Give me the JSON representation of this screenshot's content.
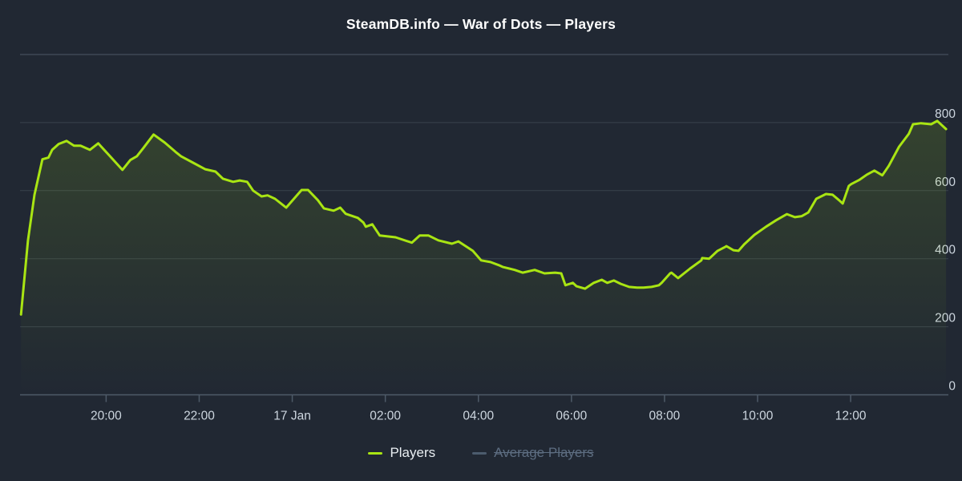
{
  "title": "SteamDB.info — War of Dots — Players",
  "colors": {
    "background": "#212833",
    "players_line": "#a9e513",
    "players_fill_top": "rgba(169,229,19,0.14)",
    "players_fill_bottom": "rgba(169,229,19,0.0)",
    "gridline": "#39424d",
    "plot_top_border": "#3f4854",
    "axis_line": "#4e5a68",
    "axis_label": "#cdd6df",
    "title_text": "#ffffff",
    "legend_enabled_text": "#e9eef2",
    "legend_disabled_text": "#5d6d81",
    "legend_disabled_marker": "#4c5c6e"
  },
  "legend": {
    "items": [
      {
        "label": "Players",
        "color": "#a9e513",
        "enabled": true
      },
      {
        "label": "Average Players",
        "color": "#4c5c6e",
        "enabled": false
      }
    ]
  },
  "chart_data": {
    "type": "area",
    "title": "SteamDB.info — War of Dots — Players",
    "xlabel": "",
    "ylabel": "",
    "x_unit": "hours relative to 17 Jan 00:00",
    "xlim": [
      -5.85,
      14.1
    ],
    "ylim": [
      0,
      1000
    ],
    "grid": true,
    "legend_position": "bottom",
    "x_ticks": [
      {
        "v": -4,
        "label": "20:00"
      },
      {
        "v": -2,
        "label": "22:00"
      },
      {
        "v": 0,
        "label": "17 Jan"
      },
      {
        "v": 2,
        "label": "02:00"
      },
      {
        "v": 4,
        "label": "04:00"
      },
      {
        "v": 6,
        "label": "06:00"
      },
      {
        "v": 8,
        "label": "08:00"
      },
      {
        "v": 10,
        "label": "10:00"
      },
      {
        "v": 12,
        "label": "12:00"
      }
    ],
    "y_ticks": [
      {
        "v": 0,
        "label": "0"
      },
      {
        "v": 200,
        "label": "200"
      },
      {
        "v": 400,
        "label": "400"
      },
      {
        "v": 600,
        "label": "600"
      },
      {
        "v": 800,
        "label": "800"
      }
    ],
    "series": [
      {
        "name": "Players",
        "visible": true,
        "color": "#a9e513",
        "x": [
          -5.83,
          -5.68,
          -5.54,
          -5.37,
          -5.24,
          -5.16,
          -5.02,
          -4.85,
          -4.69,
          -4.55,
          -4.35,
          -4.17,
          -3.95,
          -3.65,
          -3.48,
          -3.34,
          -3.2,
          -2.98,
          -2.74,
          -2.51,
          -2.39,
          -2.13,
          -1.87,
          -1.65,
          -1.49,
          -1.27,
          -1.13,
          -0.97,
          -0.84,
          -0.66,
          -0.53,
          -0.37,
          -0.13,
          0.2,
          0.34,
          0.55,
          0.68,
          0.89,
          1.03,
          1.15,
          1.41,
          1.53,
          1.58,
          1.72,
          1.88,
          2.22,
          2.57,
          2.74,
          2.93,
          3.14,
          3.43,
          3.57,
          3.88,
          4.06,
          4.26,
          4.44,
          4.52,
          4.78,
          4.95,
          5.21,
          5.42,
          5.65,
          5.78,
          5.87,
          6.03,
          6.11,
          6.29,
          6.48,
          6.65,
          6.77,
          6.91,
          7.06,
          7.24,
          7.41,
          7.55,
          7.72,
          7.88,
          7.94,
          8.12,
          8.15,
          8.29,
          8.55,
          8.79,
          8.81,
          8.96,
          9.14,
          9.31,
          9.33,
          9.48,
          9.59,
          9.71,
          9.93,
          10.18,
          10.4,
          10.63,
          10.8,
          10.95,
          11.09,
          11.26,
          11.47,
          11.61,
          11.75,
          11.83,
          11.96,
          12.01,
          12.18,
          12.35,
          12.51,
          12.68,
          12.82,
          13.04,
          13.25,
          13.34,
          13.51,
          13.73,
          13.86,
          14.05
        ],
        "y": [
          236,
          454,
          588,
          692,
          697,
          720,
          737,
          746,
          732,
          732,
          720,
          739,
          706,
          661,
          690,
          701,
          725,
          765,
          741,
          714,
          701,
          682,
          663,
          656,
          635,
          626,
          630,
          626,
          600,
          583,
          586,
          576,
          550,
          602,
          602,
          572,
          548,
          541,
          550,
          532,
          520,
          506,
          494,
          501,
          468,
          463,
          447,
          468,
          468,
          454,
          444,
          451,
          423,
          395,
          390,
          381,
          376,
          367,
          359,
          367,
          357,
          359,
          357,
          322,
          329,
          319,
          312,
          329,
          338,
          329,
          336,
          326,
          317,
          315,
          315,
          317,
          322,
          329,
          357,
          359,
          343,
          371,
          395,
          402,
          400,
          423,
          435,
          437,
          425,
          423,
          442,
          470,
          494,
          513,
          531,
          522,
          525,
          536,
          576,
          590,
          588,
          572,
          562,
          614,
          619,
          631,
          647,
          659,
          645,
          673,
          729,
          767,
          795,
          798,
          795,
          805,
          781
        ]
      },
      {
        "name": "Average Players",
        "visible": false,
        "color": "#4c5c6e",
        "x": [],
        "y": []
      }
    ]
  }
}
